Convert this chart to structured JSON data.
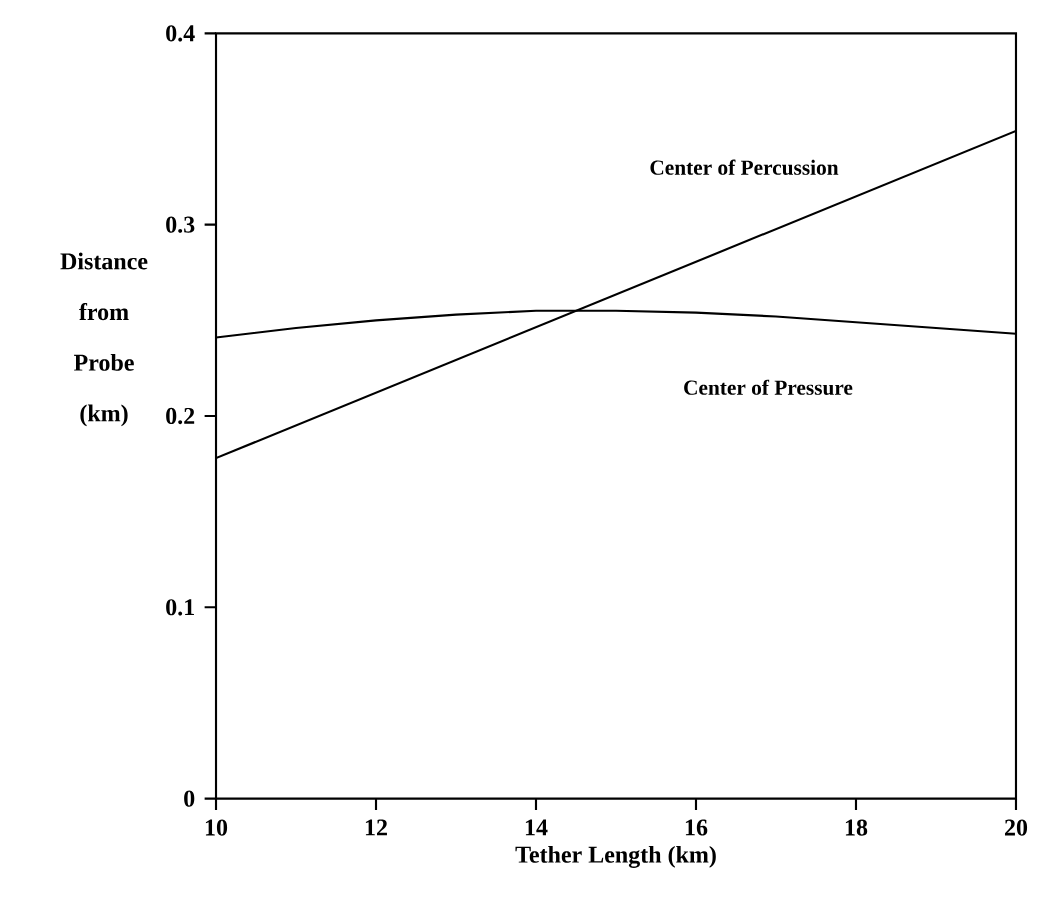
{
  "chart_data": {
    "type": "line",
    "xlabel": "Tether Length (km)",
    "ylabel": "Distance from Probe (km)",
    "x": [
      10,
      11,
      12,
      13,
      14,
      15,
      16,
      17,
      18,
      19,
      20
    ],
    "series": [
      {
        "name": "Center of Percussion",
        "color": "#000000",
        "x": [
          10,
          20
        ],
        "values": [
          0.178,
          0.349
        ]
      },
      {
        "name": "Center of Pressure",
        "color": "#000000",
        "values": [
          0.241,
          0.246,
          0.25,
          0.253,
          0.255,
          0.255,
          0.254,
          0.252,
          0.249,
          0.246,
          0.243
        ]
      }
    ],
    "xlim": [
      10,
      20
    ],
    "ylim": [
      0,
      0.4
    ],
    "xticks": [
      10,
      12,
      14,
      16,
      18,
      20
    ],
    "yticks": [
      0,
      0.1,
      0.2,
      0.3,
      0.4
    ],
    "grid": false,
    "marker": "none",
    "line_style": "solid"
  }
}
